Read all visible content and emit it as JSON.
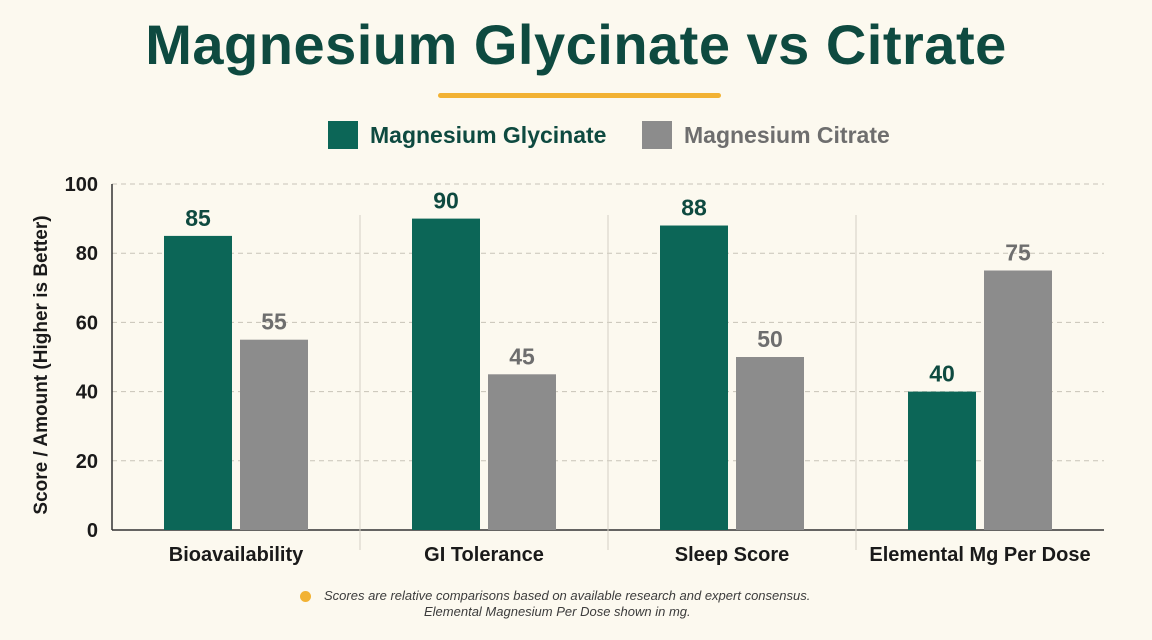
{
  "title": "Magnesium Glycinate vs Citrate",
  "colors": {
    "glycinate": "#0c6657",
    "citrate": "#8c8c8c",
    "accent": "#f2b233"
  },
  "legend": {
    "glycinate": "Magnesium Glycinate",
    "citrate": "Magnesium Citrate"
  },
  "footnote": {
    "line1": "Scores are relative comparisons based on available research and expert consensus.",
    "line2": "Elemental Magnesium Per Dose shown in mg."
  },
  "chart_data": {
    "type": "bar",
    "title": "Magnesium Glycinate vs Citrate",
    "xlabel": "",
    "ylabel": "Score / Amount (Higher is Better)",
    "ylim": [
      0,
      100
    ],
    "yticks": [
      0,
      20,
      40,
      60,
      80,
      100
    ],
    "grid": true,
    "legend_position": "top",
    "categories": [
      "Bioavailability",
      "GI Tolerance",
      "Sleep Score",
      "Elemental Mg Per Dose"
    ],
    "series": [
      {
        "name": "Magnesium Glycinate",
        "values": [
          85,
          90,
          88,
          40
        ]
      },
      {
        "name": "Magnesium Citrate",
        "values": [
          55,
          45,
          50,
          75
        ]
      }
    ]
  }
}
